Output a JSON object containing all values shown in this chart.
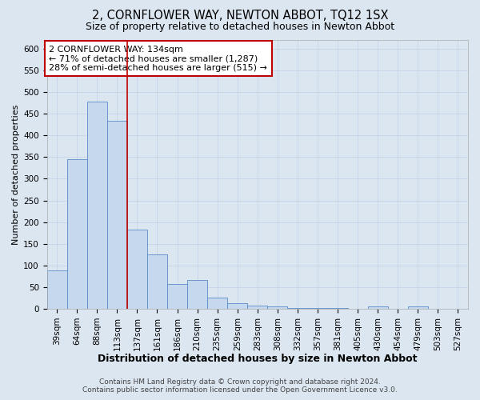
{
  "title": "2, CORNFLOWER WAY, NEWTON ABBOT, TQ12 1SX",
  "subtitle": "Size of property relative to detached houses in Newton Abbot",
  "xlabel": "Distribution of detached houses by size in Newton Abbot",
  "ylabel": "Number of detached properties",
  "categories": [
    "39sqm",
    "64sqm",
    "88sqm",
    "113sqm",
    "137sqm",
    "161sqm",
    "186sqm",
    "210sqm",
    "235sqm",
    "259sqm",
    "283sqm",
    "308sqm",
    "332sqm",
    "357sqm",
    "381sqm",
    "405sqm",
    "430sqm",
    "454sqm",
    "479sqm",
    "503sqm",
    "527sqm"
  ],
  "values": [
    88,
    345,
    477,
    433,
    183,
    125,
    57,
    67,
    25,
    12,
    8,
    5,
    2,
    1,
    1,
    0,
    5,
    0,
    5,
    0,
    0
  ],
  "bar_color": "#c5d8ee",
  "bar_edge_color": "#5b8cc8",
  "bar_linewidth": 0.6,
  "ref_line_x": 3.5,
  "ref_line_color": "#c00000",
  "annotation_text": "2 CORNFLOWER WAY: 134sqm\n← 71% of detached houses are smaller (1,287)\n28% of semi-detached houses are larger (515) →",
  "annotation_box_color": "#ffffff",
  "annotation_box_edge": "#c00000",
  "ylim": [
    0,
    620
  ],
  "yticks": [
    0,
    50,
    100,
    150,
    200,
    250,
    300,
    350,
    400,
    450,
    500,
    550,
    600
  ],
  "grid_color": "#c5d5e8",
  "background_color": "#dce6f1",
  "plot_bg_color": "#dce6f1",
  "footer_line1": "Contains HM Land Registry data © Crown copyright and database right 2024.",
  "footer_line2": "Contains public sector information licensed under the Open Government Licence v3.0.",
  "title_fontsize": 10.5,
  "subtitle_fontsize": 9,
  "xlabel_fontsize": 9,
  "ylabel_fontsize": 8,
  "tick_fontsize": 7.5,
  "annotation_fontsize": 8,
  "footer_fontsize": 6.5
}
